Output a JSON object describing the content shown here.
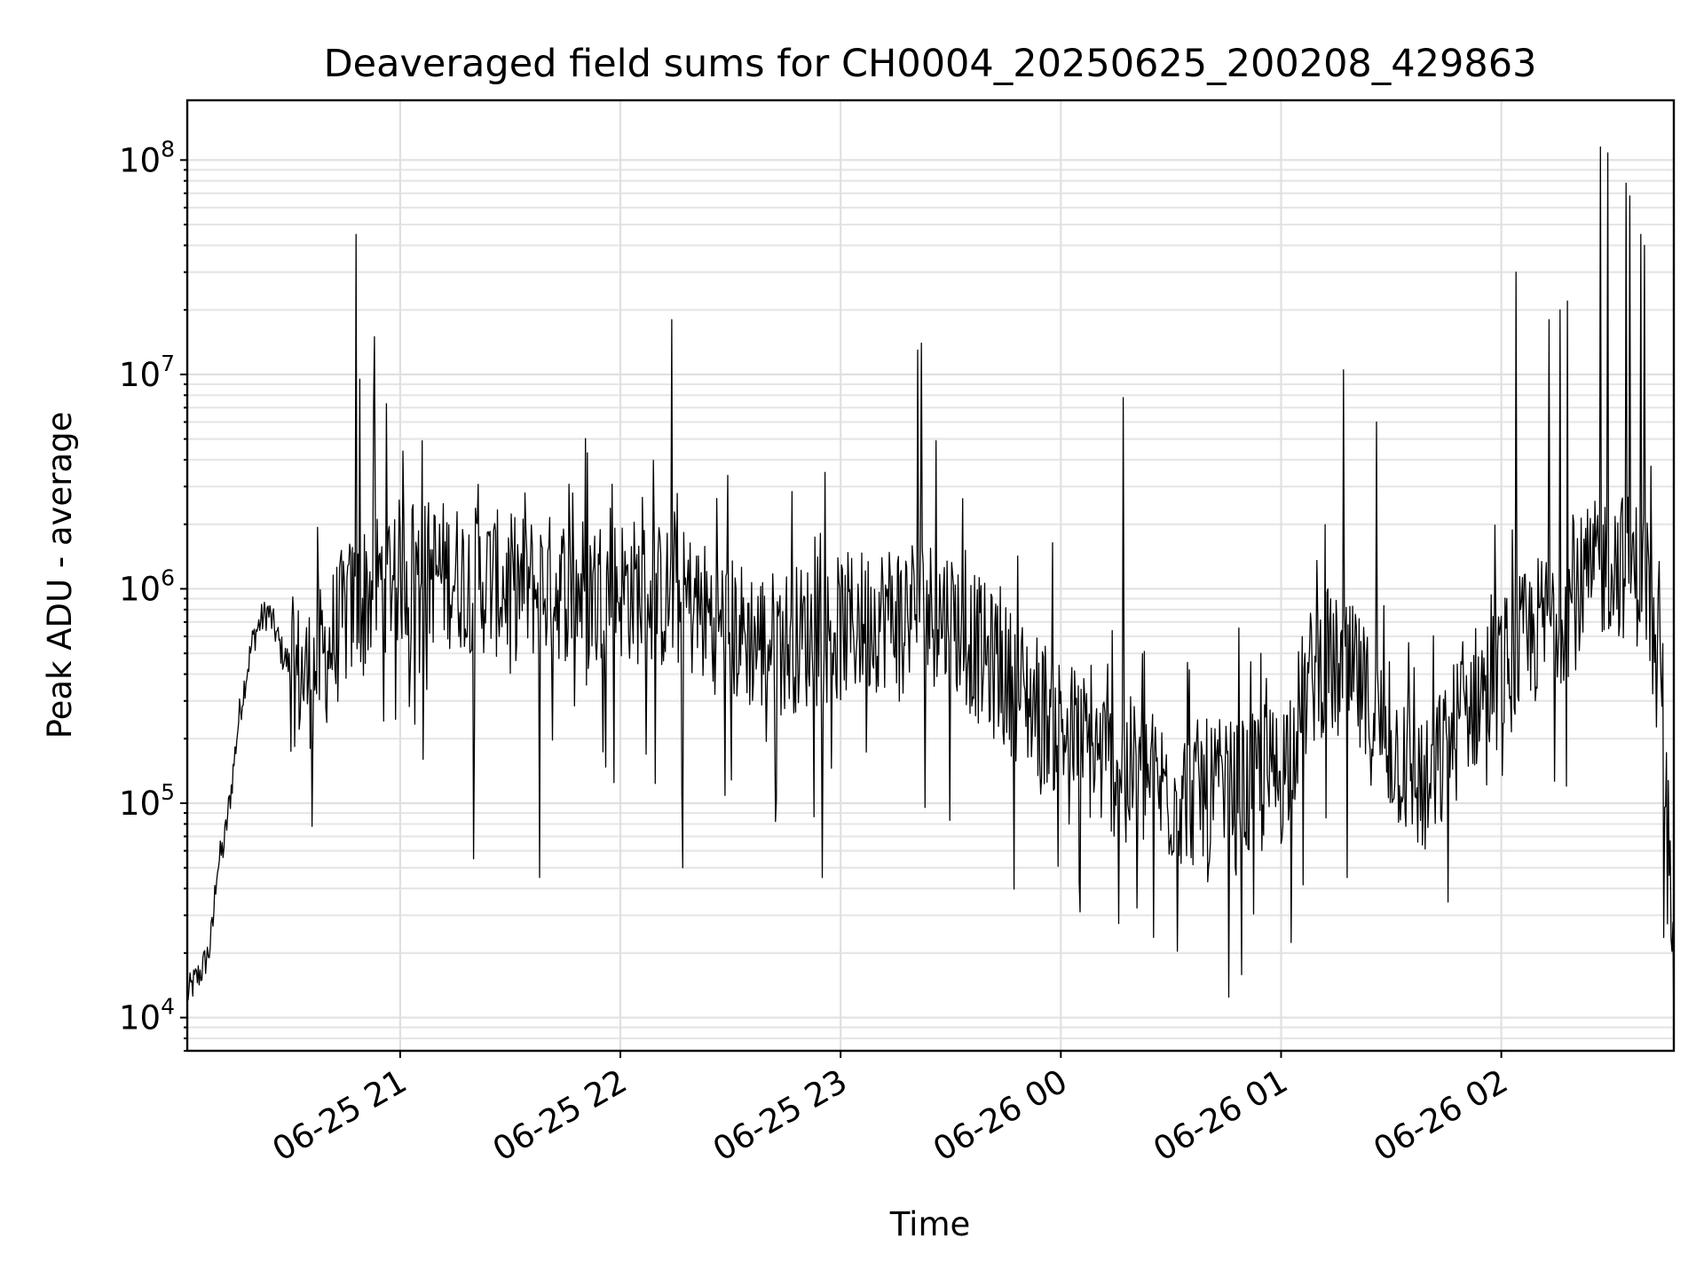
{
  "chart_data": {
    "type": "line",
    "title": "Deaveraged field sums for CH0004_20250625_200208_429863",
    "xlabel": "Time",
    "ylabel": "Peak ADU - average",
    "x_ticks": [
      {
        "value": "2025-06-25 21:00",
        "label": "06-25 21"
      },
      {
        "value": "2025-06-25 22:00",
        "label": "06-25 22"
      },
      {
        "value": "2025-06-25 23:00",
        "label": "06-25 23"
      },
      {
        "value": "2025-06-26 00:00",
        "label": "06-26 00"
      },
      {
        "value": "2025-06-26 01:00",
        "label": "06-26 01"
      },
      {
        "value": "2025-06-26 02:00",
        "label": "06-26 02"
      }
    ],
    "y_ticks": [
      {
        "value": 10000,
        "base": "10",
        "exp": "4"
      },
      {
        "value": 100000,
        "base": "10",
        "exp": "5"
      },
      {
        "value": 1000000,
        "base": "10",
        "exp": "6"
      },
      {
        "value": 10000000,
        "base": "10",
        "exp": "7"
      },
      {
        "value": 100000000,
        "base": "10",
        "exp": "8"
      }
    ],
    "xlim": [
      "2025-06-25 20:02",
      "2025-06-26 02:47"
    ],
    "ylim": [
      7000,
      190000000
    ],
    "yscale": "log",
    "grid": true,
    "line_color": "#000000",
    "series": [
      {
        "x": [
          "2025-06-25 20:02",
          "2025-06-25 20:04",
          "2025-06-25 20:06",
          "2025-06-25 20:08",
          "2025-06-25 20:09",
          "2025-06-25 20:10",
          "2025-06-25 20:12",
          "2025-06-25 20:14",
          "2025-06-25 20:16",
          "2025-06-25 20:18",
          "2025-06-25 20:20",
          "2025-06-25 20:22",
          "2025-06-25 20:24",
          "2025-06-25 20:26",
          "2025-06-25 20:28",
          "2025-06-25 20:30",
          "2025-06-25 20:35",
          "2025-06-25 20:40",
          "2025-06-25 20:45",
          "2025-06-25 20:50",
          "2025-06-25 20:55",
          "2025-06-25 21:00",
          "2025-06-25 21:10",
          "2025-06-25 21:20",
          "2025-06-25 21:30",
          "2025-06-25 21:40",
          "2025-06-25 21:50",
          "2025-06-25 22:00",
          "2025-06-25 22:10",
          "2025-06-25 22:20",
          "2025-06-25 22:30",
          "2025-06-25 22:40",
          "2025-06-25 22:50",
          "2025-06-25 23:00",
          "2025-06-25 23:10",
          "2025-06-25 23:20",
          "2025-06-25 23:30",
          "2025-06-25 23:40",
          "2025-06-25 23:50",
          "2025-06-26 00:00",
          "2025-06-26 00:10",
          "2025-06-26 00:20",
          "2025-06-26 00:30",
          "2025-06-26 00:40",
          "2025-06-26 00:50",
          "2025-06-26 01:00",
          "2025-06-26 01:10",
          "2025-06-26 01:20",
          "2025-06-26 01:30",
          "2025-06-26 01:40",
          "2025-06-26 01:50",
          "2025-06-26 02:00",
          "2025-06-26 02:10",
          "2025-06-26 02:20",
          "2025-06-26 02:30",
          "2025-06-26 02:40",
          "2025-06-26 02:47"
        ],
        "values": [
          13000,
          15000,
          17000,
          21000,
          28000,
          50000,
          65000,
          120000,
          250000,
          400000,
          600000,
          720000,
          800000,
          650000,
          500000,
          450000,
          420000,
          550000,
          800000,
          1000000,
          1200000,
          1300000,
          1300000,
          1200000,
          1100000,
          1100000,
          1100000,
          1100000,
          1000000,
          900000,
          700000,
          600000,
          650000,
          700000,
          800000,
          900000,
          800000,
          500000,
          350000,
          250000,
          180000,
          150000,
          120000,
          120000,
          120000,
          150000,
          500000,
          400000,
          200000,
          120000,
          300000,
          450000,
          700000,
          1000000,
          1500000,
          1200000,
          35000
        ]
      }
    ],
    "spikes": [
      {
        "x": "2025-06-25 20:48",
        "value": 45000000
      },
      {
        "x": "2025-06-25 20:49",
        "value": 9500000
      },
      {
        "x": "2025-06-25 20:53",
        "value": 15000000
      },
      {
        "x": "2025-06-25 21:06",
        "value": 4900000
      },
      {
        "x": "2025-06-25 21:34",
        "value": 2800000
      },
      {
        "x": "2025-06-25 21:47",
        "value": 2800000
      },
      {
        "x": "2025-06-25 22:14",
        "value": 18000000
      },
      {
        "x": "2025-06-25 23:21",
        "value": 13000000
      },
      {
        "x": "2025-06-25 23:22",
        "value": 14000000
      },
      {
        "x": "2025-06-25 23:26",
        "value": 4900000
      },
      {
        "x": "2025-06-26 00:17",
        "value": 7800000
      },
      {
        "x": "2025-06-26 01:17",
        "value": 10500000
      },
      {
        "x": "2025-06-26 01:26",
        "value": 6000000
      },
      {
        "x": "2025-06-26 02:04",
        "value": 30000000
      },
      {
        "x": "2025-06-26 02:13",
        "value": 18000000
      },
      {
        "x": "2025-06-26 02:16",
        "value": 20000000
      },
      {
        "x": "2025-06-26 02:18",
        "value": 22000000
      },
      {
        "x": "2025-06-26 02:27",
        "value": 115000000
      },
      {
        "x": "2025-06-26 02:29",
        "value": 108000000
      },
      {
        "x": "2025-06-26 02:34",
        "value": 78000000
      },
      {
        "x": "2025-06-26 02:35",
        "value": 68000000
      },
      {
        "x": "2025-06-26 02:38",
        "value": 45000000
      },
      {
        "x": "2025-06-26 02:39",
        "value": 40000000
      }
    ],
    "dips": [
      {
        "x": "2025-06-25 21:20",
        "value": 55000
      },
      {
        "x": "2025-06-25 21:38",
        "value": 45000
      },
      {
        "x": "2025-06-25 22:17",
        "value": 50000
      },
      {
        "x": "2025-06-25 22:55",
        "value": 45000
      },
      {
        "x": "2025-06-26 00:05",
        "value": 43000
      },
      {
        "x": "2025-06-26 00:40",
        "value": 43000
      },
      {
        "x": "2025-06-26 01:18",
        "value": 45000
      }
    ]
  }
}
